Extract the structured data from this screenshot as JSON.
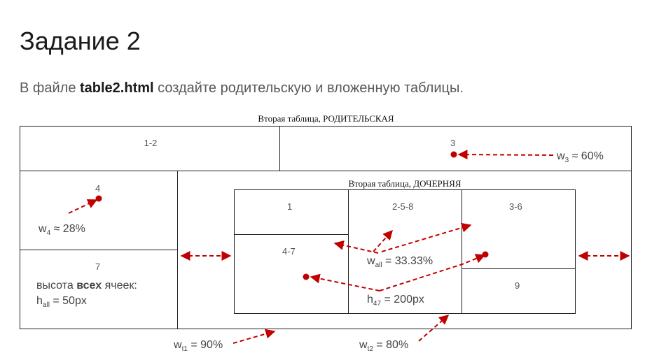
{
  "header": {
    "title": "Задание 2",
    "subtitle_pre": "В файле ",
    "subtitle_file": "table2.html",
    "subtitle_post": " создайте родительскую и вложенную таблицы."
  },
  "parent_table": {
    "caption": "Вторая таблица, РОДИТЕЛЬСКАЯ",
    "cells": {
      "c12": "1-2",
      "c3": "3",
      "c4": "4",
      "c7": "7"
    }
  },
  "child_table": {
    "caption": "Вторая таблица, ДОЧЕРНЯЯ",
    "cells": {
      "c1": "1",
      "c258": "2-5-8",
      "c36": "3-6",
      "c47": "4-7",
      "c9": "9"
    }
  },
  "annotations": {
    "w3": {
      "base": "w",
      "sub": "3",
      "rest": " ≈ 60%"
    },
    "w4": {
      "base": "w",
      "sub": "4",
      "rest": " ≈ 28%"
    },
    "height_note_pre": "высота ",
    "height_note_bold": "всех",
    "height_note_post": " ячеек:",
    "hall": {
      "base": "h",
      "sub": "all",
      "rest": " = 50px"
    },
    "wall": {
      "base": "w",
      "sub": "all",
      "rest": " = 33.33%"
    },
    "h47": {
      "base": "h",
      "sub": "47",
      "rest": " = 200px"
    },
    "wt1": {
      "base": "w",
      "sub": "t1",
      "rest": " = 90%"
    },
    "wt2": {
      "base": "w",
      "sub": "t2",
      "rest": " = 80%"
    }
  },
  "colors": {
    "arrow": "#c00000",
    "border": "#222222",
    "text_gray": "#595959"
  }
}
